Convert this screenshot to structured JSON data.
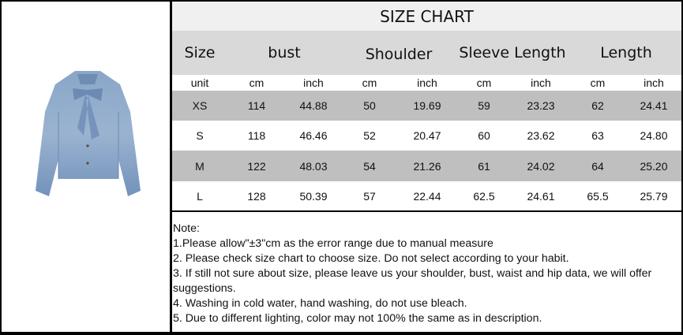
{
  "title": "SIZE CHART",
  "headers": {
    "size": "Size",
    "bust": "bust",
    "shoulder": "Shoulder",
    "sleeve": "Sleeve Length",
    "length": "Length"
  },
  "units": [
    "unit",
    "cm",
    "inch",
    "cm",
    "inch",
    "cm",
    "inch",
    "cm",
    "inch"
  ],
  "rows": [
    [
      "XS",
      "114",
      "44.88",
      "50",
      "19.69",
      "59",
      "23.23",
      "62",
      "24.41"
    ],
    [
      "S",
      "118",
      "46.46",
      "52",
      "20.47",
      "60",
      "23.62",
      "63",
      "24.80"
    ],
    [
      "M",
      "122",
      "48.03",
      "54",
      "21.26",
      "61",
      "24.02",
      "64",
      "25.20"
    ],
    [
      "L",
      "128",
      "50.39",
      "57",
      "22.44",
      "62.5",
      "24.61",
      "65.5",
      "25.79"
    ]
  ],
  "notes": [
    " Note:",
    "1.Please allow\"±3\"cm as the error range due to manual measure",
    "2. Please check size chart to choose size. Do not select according to your habit.",
    "3. If still not sure about size, please leave us your shoulder, bust, waist and hip data, we will offer",
    "suggestions.",
    "4. Washing in cold water, hand washing, do not use bleach.",
    "5. Due to different lighting, color may not 100% the same as in description."
  ],
  "product_image": "denim-bow-blouse",
  "colors": {
    "header_gray": "#d9d9d9",
    "row_gray": "#bfbfbf",
    "title_bg": "#f0f0f0",
    "denim": "#7f9cc0"
  }
}
